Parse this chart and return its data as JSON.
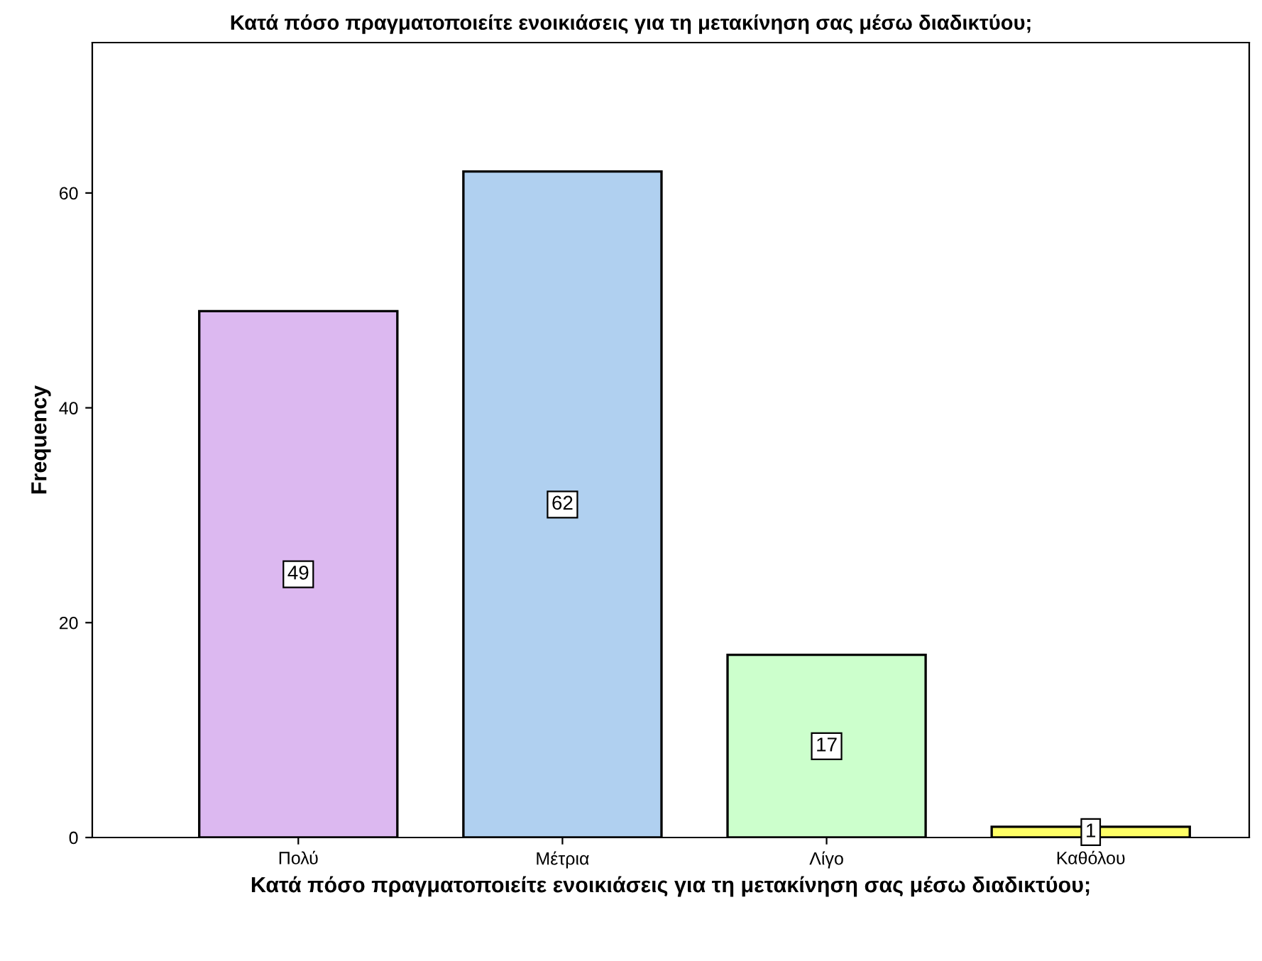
{
  "chart_data": {
    "type": "bar",
    "title": "Κατά πόσο πραγματοποιείτε ενοικιάσεις για τη μετακίνηση σας μέσω διαδικτύου;",
    "xlabel": "Κατά πόσο πραγματοποιείτε ενοικιάσεις για τη μετακίνηση σας μέσω διαδικτύου;",
    "ylabel": "Frequency",
    "categories": [
      "Πολύ",
      "Μέτρια",
      "Λίγο",
      "Καθόλου"
    ],
    "values": [
      49,
      62,
      17,
      1
    ],
    "colors": [
      "#dcb8f0",
      "#b0d0f0",
      "#ccffcc",
      "#ffff66"
    ],
    "ylim": [
      0,
      74
    ],
    "yticks": [
      0,
      20,
      40,
      60
    ],
    "data_labels": true,
    "grid": false,
    "legend": false
  }
}
